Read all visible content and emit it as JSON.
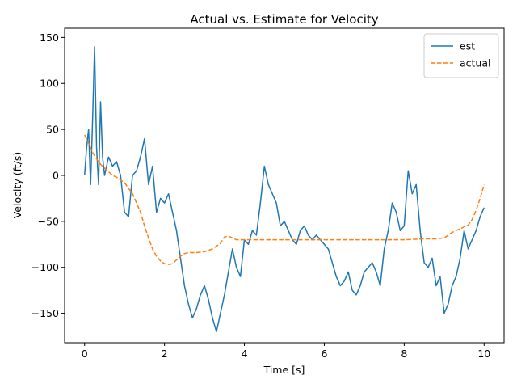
{
  "chart_data": {
    "type": "line",
    "title": "Actual vs. Estimate for Velocity",
    "xlabel": "Time [s]",
    "ylabel": "Velocity (ft/s)",
    "xlim": [
      -0.5,
      10.5
    ],
    "ylim": [
      -182,
      160
    ],
    "xticks": [
      0,
      2,
      4,
      6,
      8,
      10
    ],
    "xtick_labels": [
      "0",
      "2",
      "4",
      "6",
      "8",
      "10"
    ],
    "yticks": [
      -150,
      -100,
      -50,
      0,
      50,
      100,
      150
    ],
    "ytick_labels": [
      "−150",
      "−100",
      "−50",
      "0",
      "50",
      "100",
      "150"
    ],
    "grid": false,
    "legend_position": "top-right",
    "series": [
      {
        "name": "est",
        "color": "#1f77b4",
        "style": "solid",
        "x": [
          0.0,
          0.05,
          0.1,
          0.15,
          0.2,
          0.25,
          0.3,
          0.35,
          0.4,
          0.45,
          0.5,
          0.6,
          0.7,
          0.8,
          0.9,
          1.0,
          1.1,
          1.2,
          1.3,
          1.4,
          1.5,
          1.6,
          1.7,
          1.8,
          1.9,
          2.0,
          2.1,
          2.2,
          2.3,
          2.4,
          2.5,
          2.6,
          2.7,
          2.8,
          2.9,
          3.0,
          3.1,
          3.2,
          3.3,
          3.4,
          3.5,
          3.6,
          3.7,
          3.8,
          3.9,
          4.0,
          4.1,
          4.2,
          4.3,
          4.4,
          4.5,
          4.6,
          4.7,
          4.8,
          4.9,
          5.0,
          5.1,
          5.2,
          5.3,
          5.4,
          5.5,
          5.6,
          5.7,
          5.8,
          5.9,
          6.0,
          6.1,
          6.2,
          6.3,
          6.4,
          6.5,
          6.6,
          6.7,
          6.8,
          6.9,
          7.0,
          7.1,
          7.2,
          7.3,
          7.4,
          7.5,
          7.6,
          7.7,
          7.8,
          7.9,
          8.0,
          8.1,
          8.2,
          8.3,
          8.4,
          8.5,
          8.6,
          8.7,
          8.8,
          8.9,
          9.0,
          9.1,
          9.2,
          9.3,
          9.4,
          9.5,
          9.6,
          9.7,
          9.8,
          9.9,
          10.0
        ],
        "y": [
          0,
          30,
          50,
          -10,
          60,
          140,
          30,
          -10,
          80,
          20,
          0,
          20,
          10,
          15,
          0,
          -40,
          -45,
          0,
          5,
          20,
          40,
          -10,
          10,
          -40,
          -25,
          -30,
          -20,
          -40,
          -60,
          -90,
          -120,
          -140,
          -155,
          -145,
          -130,
          -120,
          -135,
          -155,
          -170,
          -150,
          -130,
          -105,
          -80,
          -100,
          -110,
          -70,
          -75,
          -60,
          -65,
          -30,
          10,
          -10,
          -20,
          -30,
          -55,
          -50,
          -60,
          -70,
          -75,
          -60,
          -55,
          -65,
          -70,
          -65,
          -70,
          -75,
          -80,
          -95,
          -110,
          -120,
          -115,
          -105,
          -125,
          -130,
          -120,
          -105,
          -100,
          -95,
          -105,
          -120,
          -80,
          -60,
          -30,
          -40,
          -60,
          -55,
          5,
          -20,
          -10,
          -60,
          -95,
          -100,
          -90,
          -120,
          -110,
          -150,
          -140,
          -120,
          -110,
          -90,
          -60,
          -80,
          -70,
          -60,
          -45,
          -35
        ]
      },
      {
        "name": "actual",
        "color": "#ff7f0e",
        "style": "dashed",
        "x": [
          0.0,
          0.1,
          0.2,
          0.3,
          0.4,
          0.5,
          0.6,
          0.7,
          0.8,
          0.9,
          1.0,
          1.1,
          1.2,
          1.3,
          1.4,
          1.5,
          1.6,
          1.7,
          1.8,
          1.9,
          2.0,
          2.1,
          2.2,
          2.3,
          2.4,
          2.5,
          2.6,
          2.8,
          3.0,
          3.2,
          3.4,
          3.5,
          3.6,
          3.7,
          3.8,
          3.9,
          4.0,
          4.5,
          5.0,
          5.5,
          6.0,
          6.5,
          7.0,
          7.5,
          8.0,
          8.5,
          8.8,
          9.0,
          9.2,
          9.4,
          9.6,
          9.7,
          9.8,
          9.9,
          10.0
        ],
        "y": [
          44,
          35,
          25,
          18,
          12,
          8,
          4,
          0,
          -2,
          -5,
          -8,
          -14,
          -20,
          -30,
          -40,
          -55,
          -68,
          -80,
          -88,
          -93,
          -96,
          -97,
          -96,
          -92,
          -88,
          -85,
          -84,
          -84,
          -83,
          -80,
          -74,
          -67,
          -66,
          -68,
          -70,
          -70,
          -70,
          -70,
          -70,
          -70,
          -70,
          -70,
          -70,
          -70,
          -70,
          -69,
          -69,
          -68,
          -62,
          -58,
          -54,
          -48,
          -38,
          -25,
          -10
        ]
      }
    ]
  }
}
